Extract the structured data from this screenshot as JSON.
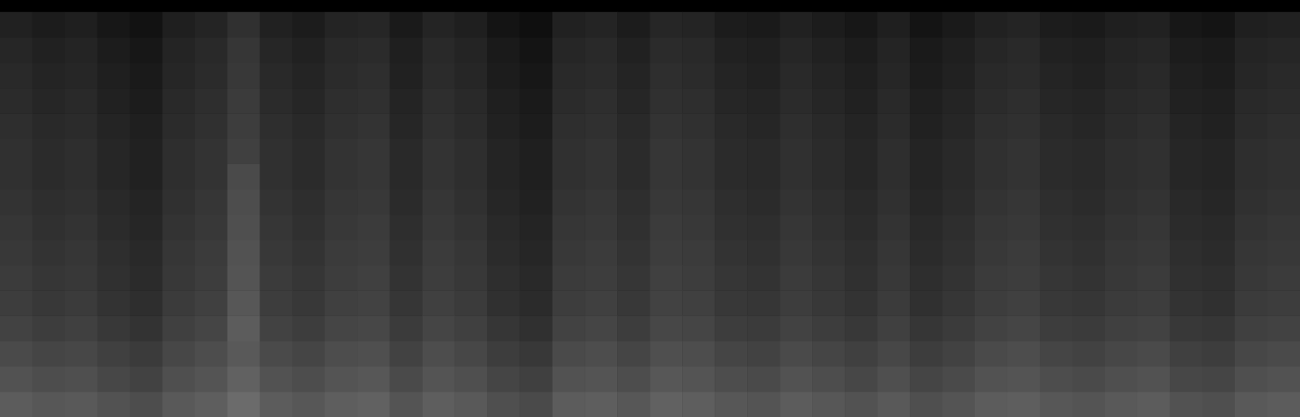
{
  "chart_data": {
    "type": "heatmap",
    "tick_labels": false,
    "zlim": [
      0,
      100
    ],
    "cells": [
      [
        36,
        34,
        35,
        32,
        30,
        35,
        37,
        42,
        36,
        34,
        37,
        38,
        33,
        37,
        35,
        31,
        29,
        36,
        37,
        34,
        38,
        37,
        34,
        33,
        36,
        34,
        32,
        35,
        31,
        33,
        36,
        37,
        34,
        33,
        35,
        36,
        32,
        31,
        35,
        36
      ],
      [
        32,
        30,
        31,
        28,
        26,
        31,
        33,
        38,
        32,
        30,
        33,
        34,
        29,
        33,
        31,
        27,
        25,
        32,
        33,
        30,
        34,
        33,
        30,
        29,
        32,
        30,
        28,
        31,
        27,
        29,
        32,
        33,
        30,
        29,
        31,
        32,
        28,
        27,
        31,
        32
      ],
      [
        29,
        27,
        28,
        25,
        23,
        28,
        30,
        35,
        29,
        27,
        30,
        31,
        26,
        30,
        28,
        24,
        22,
        29,
        30,
        27,
        31,
        30,
        27,
        26,
        29,
        27,
        25,
        28,
        24,
        26,
        29,
        30,
        27,
        26,
        28,
        29,
        25,
        24,
        28,
        29
      ],
      [
        26,
        24,
        25,
        22,
        20,
        25,
        27,
        36,
        26,
        24,
        27,
        28,
        23,
        27,
        25,
        21,
        19,
        26,
        27,
        24,
        28,
        27,
        24,
        23,
        26,
        24,
        22,
        25,
        21,
        23,
        26,
        27,
        24,
        23,
        25,
        26,
        22,
        21,
        25,
        26
      ],
      [
        24,
        22,
        23,
        20,
        18,
        23,
        25,
        34,
        24,
        22,
        25,
        26,
        21,
        25,
        23,
        19,
        17,
        24,
        25,
        22,
        26,
        25,
        22,
        21,
        24,
        22,
        20,
        23,
        19,
        21,
        24,
        25,
        22,
        21,
        23,
        24,
        20,
        19,
        23,
        24
      ],
      [
        23,
        21,
        22,
        19,
        17,
        22,
        24,
        33,
        23,
        21,
        24,
        25,
        20,
        24,
        22,
        18,
        16,
        23,
        24,
        21,
        25,
        24,
        21,
        20,
        23,
        21,
        19,
        22,
        18,
        20,
        23,
        24,
        21,
        20,
        22,
        23,
        19,
        18,
        22,
        23
      ],
      [
        22,
        20,
        21,
        18,
        16,
        21,
        23,
        32,
        22,
        20,
        23,
        24,
        19,
        23,
        21,
        17,
        15,
        22,
        23,
        20,
        24,
        23,
        20,
        19,
        22,
        20,
        18,
        21,
        17,
        19,
        22,
        23,
        20,
        19,
        21,
        22,
        18,
        17,
        21,
        22
      ],
      [
        21,
        19,
        20,
        17,
        15,
        20,
        22,
        31,
        21,
        19,
        22,
        23,
        18,
        22,
        20,
        16,
        14,
        21,
        22,
        19,
        23,
        22,
        19,
        18,
        21,
        19,
        17,
        20,
        16,
        18,
        21,
        22,
        19,
        18,
        20,
        21,
        17,
        16,
        20,
        21
      ],
      [
        20,
        18,
        19,
        16,
        14,
        19,
        21,
        30,
        20,
        18,
        21,
        22,
        17,
        21,
        19,
        15,
        13,
        20,
        21,
        18,
        22,
        21,
        18,
        17,
        20,
        18,
        16,
        19,
        15,
        17,
        20,
        21,
        18,
        17,
        19,
        20,
        16,
        15,
        19,
        20
      ],
      [
        19,
        17,
        18,
        15,
        13,
        18,
        20,
        29,
        19,
        17,
        20,
        21,
        16,
        20,
        18,
        14,
        12,
        19,
        20,
        17,
        21,
        20,
        17,
        16,
        19,
        17,
        15,
        18,
        14,
        16,
        19,
        20,
        17,
        16,
        18,
        19,
        15,
        14,
        18,
        19
      ],
      [
        19,
        17,
        18,
        15,
        13,
        18,
        20,
        25,
        19,
        17,
        20,
        21,
        16,
        20,
        18,
        14,
        12,
        19,
        20,
        17,
        21,
        20,
        17,
        16,
        19,
        17,
        15,
        18,
        14,
        16,
        19,
        20,
        17,
        16,
        18,
        19,
        15,
        14,
        18,
        19
      ],
      [
        18,
        16,
        17,
        14,
        12,
        17,
        19,
        24,
        18,
        16,
        19,
        20,
        15,
        19,
        17,
        13,
        11,
        18,
        19,
        16,
        20,
        19,
        16,
        15,
        18,
        16,
        14,
        17,
        13,
        15,
        18,
        19,
        16,
        15,
        17,
        18,
        14,
        13,
        17,
        18
      ],
      [
        17,
        15,
        16,
        13,
        11,
        16,
        18,
        23,
        17,
        15,
        18,
        19,
        14,
        18,
        16,
        12,
        10,
        17,
        18,
        15,
        19,
        18,
        15,
        14,
        17,
        15,
        13,
        16,
        12,
        14,
        17,
        18,
        15,
        14,
        16,
        17,
        13,
        12,
        16,
        17
      ],
      [
        16,
        14,
        15,
        12,
        10,
        15,
        17,
        22,
        16,
        14,
        17,
        18,
        13,
        17,
        15,
        11,
        9,
        16,
        17,
        14,
        18,
        17,
        14,
        13,
        16,
        14,
        12,
        15,
        11,
        13,
        16,
        17,
        14,
        13,
        15,
        16,
        12,
        11,
        15,
        16
      ],
      [
        15,
        13,
        14,
        11,
        9,
        14,
        16,
        21,
        15,
        13,
        16,
        17,
        12,
        16,
        14,
        10,
        8,
        15,
        16,
        13,
        17,
        16,
        13,
        12,
        15,
        13,
        11,
        14,
        10,
        12,
        15,
        16,
        13,
        12,
        14,
        15,
        11,
        10,
        14,
        15
      ],
      [
        13,
        11,
        12,
        9,
        7,
        12,
        14,
        19,
        13,
        11,
        14,
        15,
        10,
        14,
        12,
        8,
        6,
        13,
        14,
        11,
        15,
        14,
        11,
        10,
        13,
        11,
        9,
        12,
        8,
        10,
        13,
        14,
        11,
        10,
        12,
        13,
        9,
        8,
        12,
        13
      ]
    ]
  }
}
